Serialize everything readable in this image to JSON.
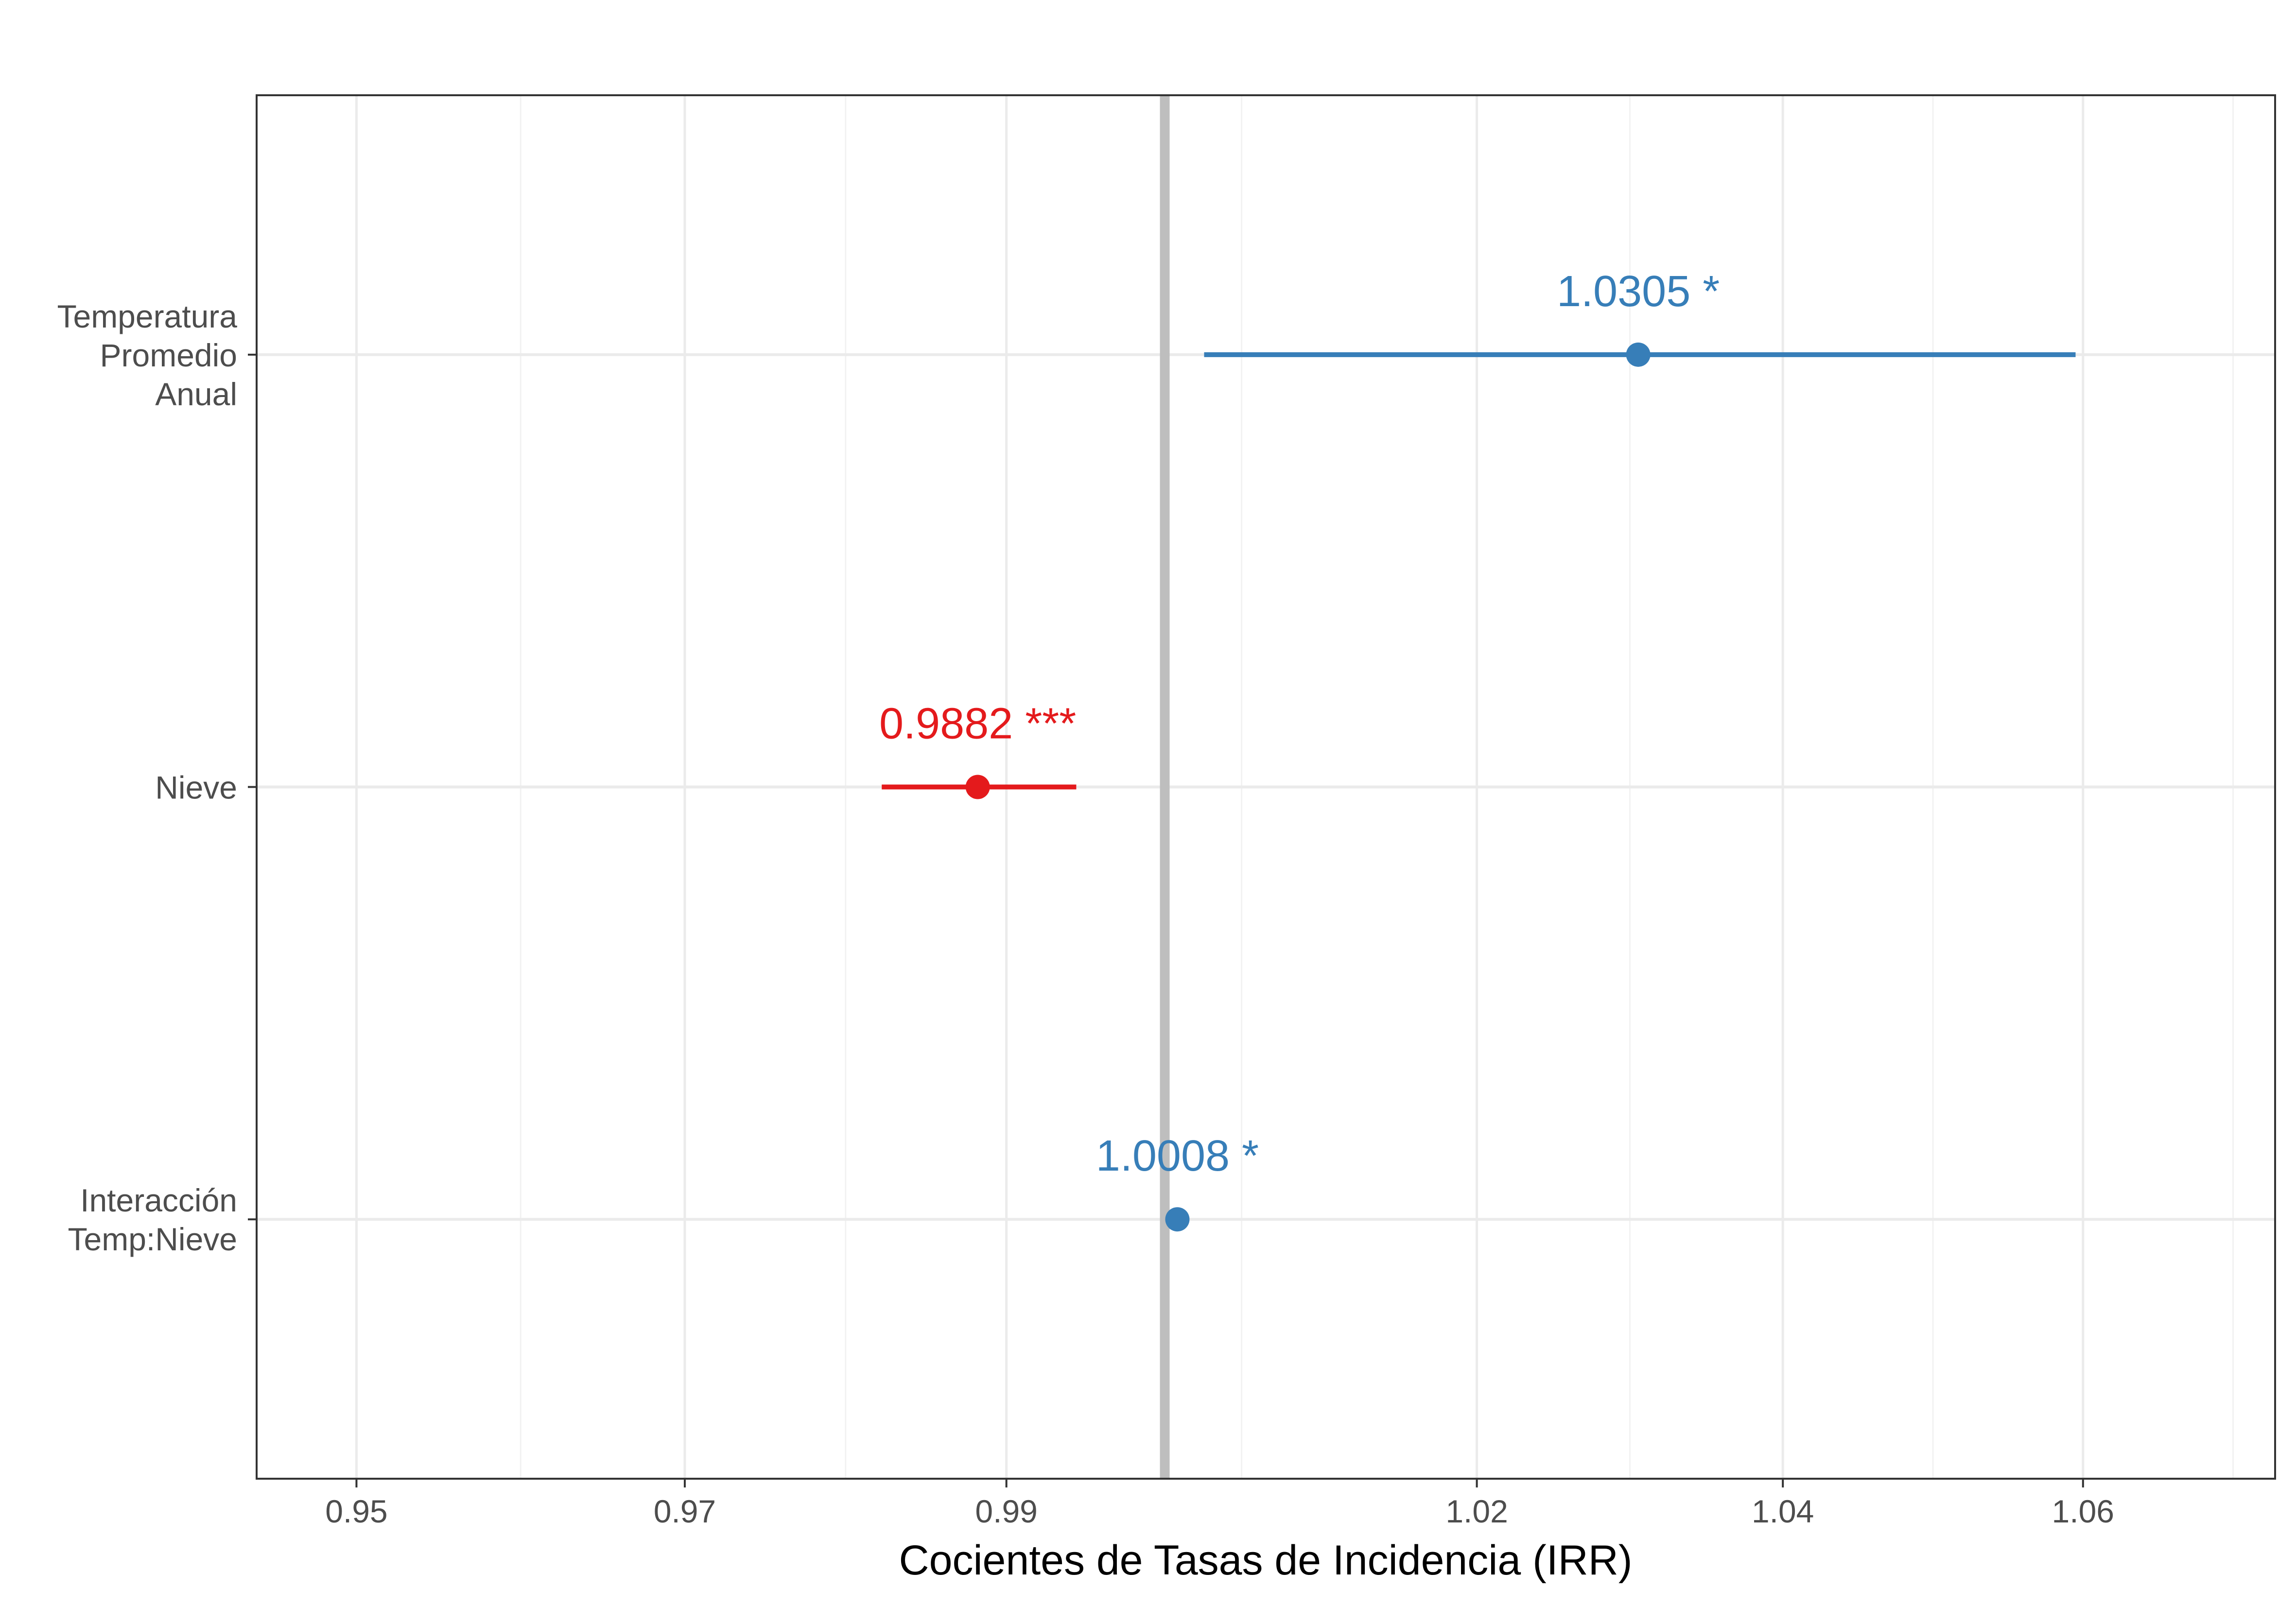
{
  "chart_data": {
    "type": "scatter",
    "title": "",
    "xlabel": "Cocientes de Tasas de Incidencia (IRR)",
    "ylabel": "",
    "x_scale": "log",
    "xlim": [
      0.944,
      1.073
    ],
    "x_ticks": [
      0.95,
      0.97,
      0.99,
      1.02,
      1.04,
      1.06
    ],
    "x_tick_labels": [
      "0.95",
      "0.97",
      "0.99",
      "1.02",
      "1.04",
      "1.06"
    ],
    "reference_line": 1.0,
    "grid": true,
    "legend": "none",
    "categories": [
      {
        "label_lines": [
          "Temperatura",
          "Promedio",
          "Anual"
        ]
      },
      {
        "label_lines": [
          "Nieve"
        ]
      },
      {
        "label_lines": [
          "Interacción",
          "Temp:Nieve"
        ]
      }
    ],
    "points": [
      {
        "value": 1.0305,
        "ci_low": 1.0025,
        "ci_high": 1.0595,
        "label": "1.0305 *",
        "color": "#377eb8"
      },
      {
        "value": 0.9882,
        "ci_low": 0.9822,
        "ci_high": 0.9944,
        "label": "0.9882 ***",
        "color": "#e41a1c"
      },
      {
        "value": 1.0008,
        "ci_low": 1.0007,
        "ci_high": 1.0009,
        "label": "1.0008 *",
        "color": "#377eb8"
      }
    ]
  }
}
